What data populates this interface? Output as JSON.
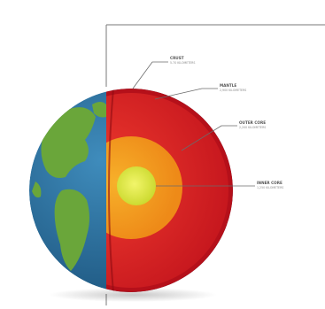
{
  "diagram": {
    "labels": [
      {
        "id": "crust",
        "title": "CRUST",
        "caption": "5-70 KILOMETERS"
      },
      {
        "id": "mantle",
        "title": "MANTLE",
        "caption": "2,900 KILOMETERS"
      },
      {
        "id": "outer-core",
        "title": "OUTER CORE",
        "caption": "2,200 KILOMETERS"
      },
      {
        "id": "inner-core",
        "title": "INNER CORE",
        "caption": "1,250 KILOMETERS"
      }
    ],
    "colors": {
      "ocean": "#2a6f9e",
      "land": "#6aa63a",
      "crust": "#c0121b",
      "mantle": "#e3262b",
      "outer_core": "#f39a1e",
      "inner_core": "#d9e63a",
      "leader": "#6b6b6b"
    }
  }
}
